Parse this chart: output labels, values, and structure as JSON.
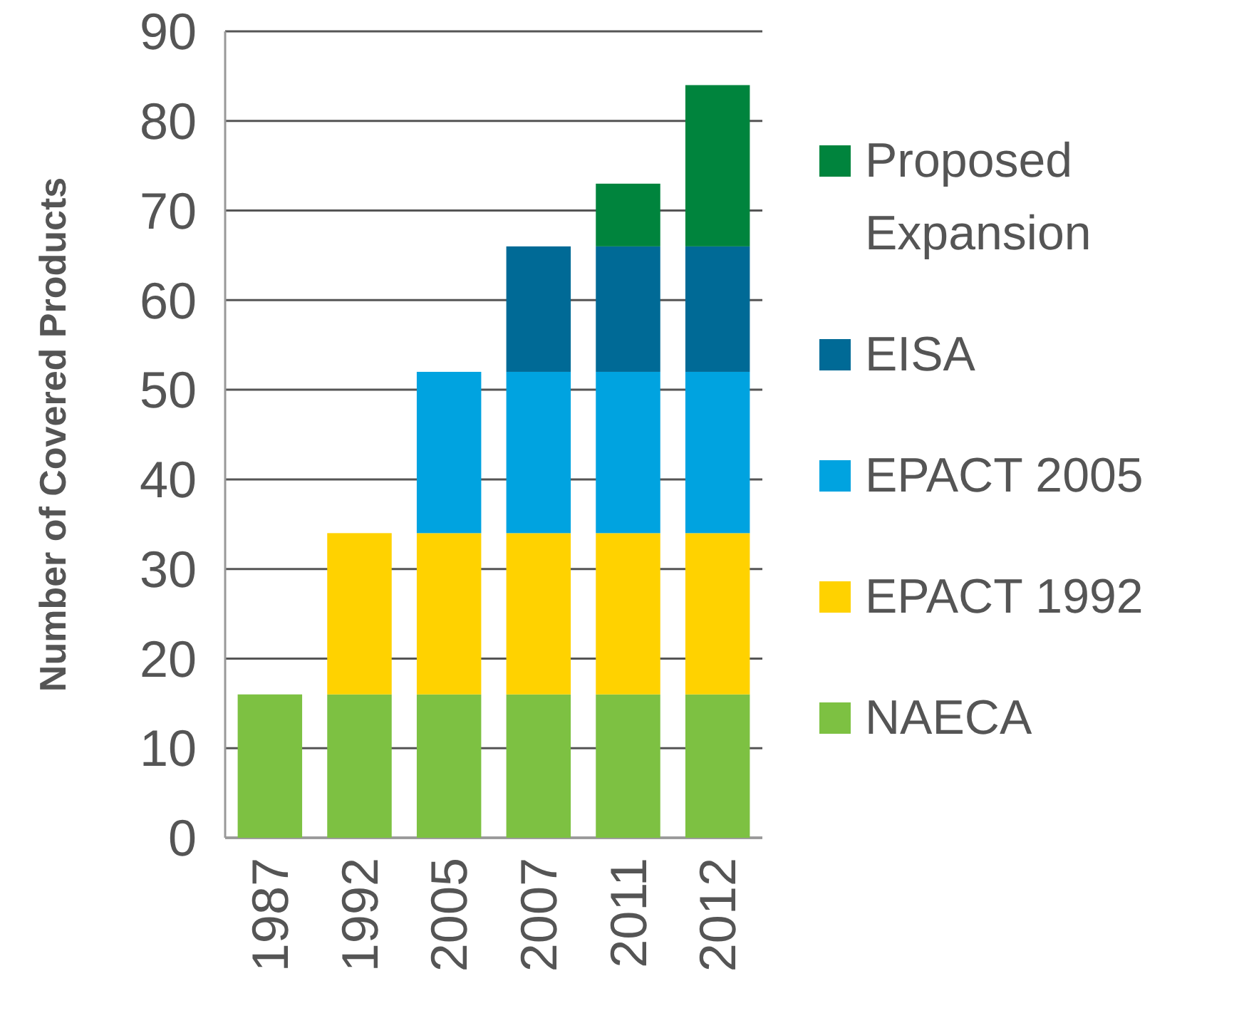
{
  "chart_data": {
    "type": "bar",
    "stacked": true,
    "ylabel": "Number of Covered Products",
    "categories": [
      "1987",
      "1992",
      "2005",
      "2007",
      "2011",
      "2012"
    ],
    "series": [
      {
        "name": "NAECA",
        "color": "#7dc142",
        "values": [
          16,
          16,
          16,
          16,
          16,
          16
        ]
      },
      {
        "name": "EPACT 1992",
        "color": "#ffd200",
        "values": [
          null,
          18,
          18,
          18,
          18,
          18
        ]
      },
      {
        "name": "EPACT 2005",
        "color": "#00a3e0",
        "values": [
          null,
          null,
          18,
          18,
          18,
          18
        ]
      },
      {
        "name": "EISA",
        "color": "#006a96",
        "values": [
          null,
          null,
          null,
          14,
          14,
          14
        ]
      },
      {
        "name": "Proposed Expansion",
        "color": "#00843d",
        "values": [
          null,
          null,
          null,
          null,
          7,
          18
        ]
      }
    ],
    "ylim": [
      0,
      90
    ],
    "yticks": [
      0,
      10,
      20,
      30,
      40,
      50,
      60,
      70,
      80,
      90
    ],
    "grid": "y",
    "legend": "right"
  }
}
